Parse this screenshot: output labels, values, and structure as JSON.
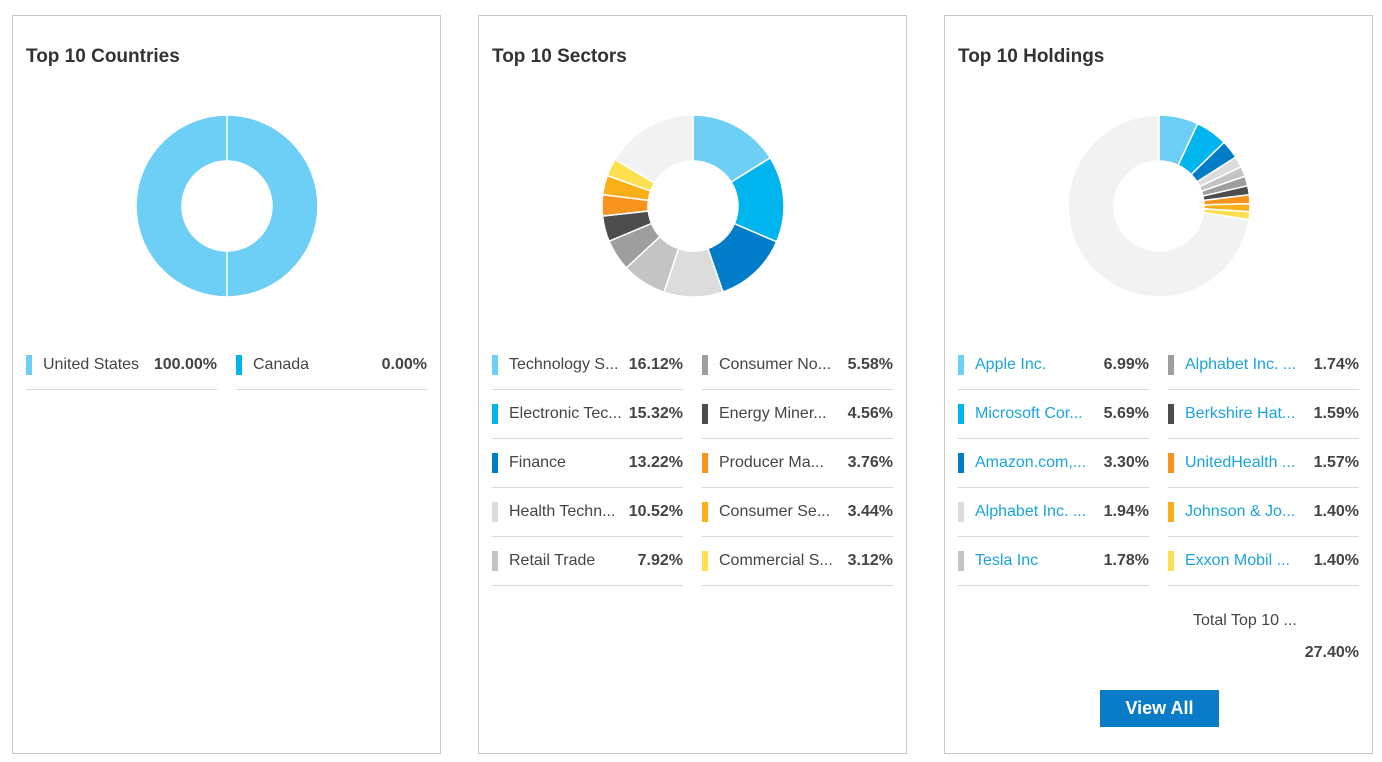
{
  "chart_data": [
    {
      "type": "pie",
      "title": "Top 10 Countries",
      "categories": [
        "United States",
        "Canada"
      ],
      "values": [
        100.0,
        0.0
      ],
      "display_values": [
        "100.00%",
        "0.00%"
      ],
      "colors": [
        "#6ecff6",
        "#00b4ee"
      ],
      "links": [
        false,
        false
      ],
      "remainder_color": "#f2f2f2"
    },
    {
      "type": "pie",
      "title": "Top 10 Sectors",
      "categories": [
        "Technology Services",
        "Electronic Technology",
        "Finance",
        "Health Technology",
        "Retail Trade",
        "Consumer Non-Durables",
        "Energy Minerals",
        "Producer Manufacturing",
        "Consumer Services",
        "Commercial Services"
      ],
      "display_labels": [
        "Technology S...",
        "Electronic Tec...",
        "Finance",
        "Health Techn...",
        "Retail Trade",
        "Consumer No...",
        "Energy Miner...",
        "Producer Ma...",
        "Consumer Se...",
        "Commercial S..."
      ],
      "values": [
        16.12,
        15.32,
        13.22,
        10.52,
        7.92,
        5.58,
        4.56,
        3.76,
        3.44,
        3.12
      ],
      "display_values": [
        "16.12%",
        "15.32%",
        "13.22%",
        "10.52%",
        "7.92%",
        "5.58%",
        "4.56%",
        "3.76%",
        "3.44%",
        "3.12%"
      ],
      "colors": [
        "#6ecff6",
        "#00b4ee",
        "#007cc8",
        "#dcdcdc",
        "#c4c4c4",
        "#9e9e9e",
        "#4d4d4d",
        "#f7941d",
        "#fbb01a",
        "#fde050"
      ],
      "links": [
        false,
        false,
        false,
        false,
        false,
        false,
        false,
        false,
        false,
        false
      ],
      "remainder_color": "#f2f2f2"
    },
    {
      "type": "pie",
      "title": "Top 10 Holdings",
      "categories": [
        "Apple Inc.",
        "Microsoft Corporation",
        "Amazon.com, Inc.",
        "Alphabet Inc. Class A",
        "Tesla Inc",
        "Alphabet Inc. Class C",
        "Berkshire Hathaway Inc.",
        "UnitedHealth Group Incorporated",
        "Johnson & Johnson",
        "Exxon Mobil Corporation"
      ],
      "display_labels": [
        "Apple Inc.",
        "Microsoft Cor...",
        "Amazon.com,...",
        "Alphabet Inc. ...",
        "Tesla Inc",
        "Alphabet Inc. ...",
        "Berkshire Hat...",
        "UnitedHealth ...",
        "Johnson & Jo...",
        "Exxon Mobil ..."
      ],
      "values": [
        6.99,
        5.69,
        3.3,
        1.94,
        1.78,
        1.74,
        1.59,
        1.57,
        1.4,
        1.4
      ],
      "display_values": [
        "6.99%",
        "5.69%",
        "3.30%",
        "1.94%",
        "1.78%",
        "1.74%",
        "1.59%",
        "1.57%",
        "1.40%",
        "1.40%"
      ],
      "colors": [
        "#6ecff6",
        "#00b4ee",
        "#007cc8",
        "#dcdcdc",
        "#c4c4c4",
        "#9e9e9e",
        "#4d4d4d",
        "#f7941d",
        "#fbb01a",
        "#fde050"
      ],
      "links": [
        true,
        true,
        true,
        true,
        true,
        true,
        true,
        true,
        true,
        true
      ],
      "remainder_color": "#f2f2f2",
      "total_label": "Total Top 10 ...",
      "total_value": "27.40%",
      "button_label": "View All"
    }
  ]
}
